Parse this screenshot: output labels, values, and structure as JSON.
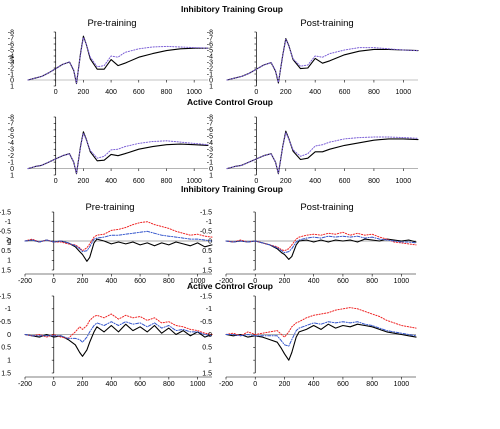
{
  "headings": {
    "top_group_1": "Inhibitory Training Group",
    "top_group_2": "Active Control Group",
    "bottom_group_1": "Inhibitory Training Group",
    "bottom_group_2": "Active Control Group",
    "pre": "Pre-training",
    "post": "Post-training"
  },
  "colors": {
    "black": "#000000",
    "purple": "#7b5fd6",
    "red": "#ee2222",
    "blue": "#3355cc"
  },
  "chart_data": [
    {
      "type": "line",
      "id": "erp-inhib-pre",
      "title": "Pre-training",
      "ylabel": "uV",
      "xlim": [
        -200,
        1100
      ],
      "ylim": [
        1,
        -8
      ],
      "y_inverted": true,
      "xticks": [
        0,
        200,
        400,
        600,
        800,
        1000
      ],
      "yticks": [
        -8,
        -7,
        -6,
        -5,
        -4,
        -3,
        -2,
        -1,
        0,
        1
      ],
      "x": [
        -200,
        -150,
        -100,
        -50,
        0,
        50,
        100,
        130,
        150,
        180,
        200,
        220,
        250,
        300,
        350,
        400,
        450,
        500,
        600,
        700,
        800,
        900,
        1000,
        1100
      ],
      "series": [
        {
          "color": "black",
          "style": "solid",
          "values": [
            0,
            -0.3,
            -0.6,
            -1.2,
            -1.9,
            -2.6,
            -3.0,
            -1.6,
            0.6,
            -4.5,
            -7.3,
            -6.0,
            -3.5,
            -1.8,
            -1.8,
            -3.4,
            -2.4,
            -2.8,
            -3.8,
            -4.4,
            -4.9,
            -5.2,
            -5.3,
            -5.3
          ]
        },
        {
          "color": "purple",
          "style": "dotted",
          "values": [
            0,
            -0.3,
            -0.6,
            -1.2,
            -1.9,
            -2.6,
            -3.0,
            -1.7,
            0.5,
            -4.4,
            -7.1,
            -6.0,
            -3.8,
            -2.2,
            -2.4,
            -4.0,
            -3.8,
            -4.6,
            -5.2,
            -5.5,
            -5.6,
            -5.5,
            -5.4,
            -5.3
          ]
        }
      ]
    },
    {
      "type": "line",
      "id": "erp-inhib-post",
      "title": "Post-training",
      "xlim": [
        -200,
        1100
      ],
      "ylim": [
        1,
        -8
      ],
      "y_inverted": true,
      "xticks": [
        0,
        200,
        400,
        600,
        800,
        1000
      ],
      "yticks": [
        -8,
        -7,
        -6,
        -5,
        -4,
        -3,
        -2,
        -1,
        0,
        1
      ],
      "x": [
        -200,
        -150,
        -100,
        -50,
        0,
        50,
        100,
        130,
        150,
        180,
        200,
        220,
        250,
        300,
        350,
        400,
        450,
        500,
        600,
        700,
        800,
        900,
        1000,
        1100
      ],
      "series": [
        {
          "color": "black",
          "style": "solid",
          "values": [
            0,
            -0.3,
            -0.6,
            -1.1,
            -1.8,
            -2.5,
            -2.9,
            -1.5,
            0.5,
            -4.2,
            -6.9,
            -5.8,
            -3.4,
            -1.9,
            -2.0,
            -3.6,
            -2.8,
            -3.2,
            -4.2,
            -4.8,
            -5.1,
            -5.1,
            -5.0,
            -4.9
          ]
        },
        {
          "color": "purple",
          "style": "dotted",
          "values": [
            0,
            -0.3,
            -0.6,
            -1.1,
            -1.8,
            -2.5,
            -2.9,
            -1.6,
            0.4,
            -4.1,
            -6.8,
            -5.7,
            -3.5,
            -2.3,
            -2.5,
            -4.0,
            -3.8,
            -4.4,
            -5.0,
            -5.4,
            -5.4,
            -5.2,
            -5.0,
            -4.9
          ]
        }
      ]
    },
    {
      "type": "line",
      "id": "erp-active-pre",
      "xlim": [
        -200,
        1100
      ],
      "ylim": [
        1,
        -8
      ],
      "y_inverted": true,
      "xticks": [
        0,
        200,
        400,
        600,
        800,
        1000
      ],
      "yticks": [
        -8,
        -7,
        -6,
        -5,
        -4,
        -3,
        -2,
        -1,
        0,
        1
      ],
      "x": [
        -200,
        -150,
        -100,
        -50,
        0,
        50,
        100,
        130,
        150,
        180,
        200,
        220,
        250,
        300,
        350,
        400,
        450,
        500,
        600,
        700,
        800,
        900,
        1000,
        1100
      ],
      "series": [
        {
          "color": "black",
          "style": "solid",
          "values": [
            0,
            -0.3,
            -0.5,
            -1.0,
            -1.5,
            -2.0,
            -2.3,
            -1.0,
            0.8,
            -3.5,
            -5.7,
            -4.6,
            -2.6,
            -1.2,
            -1.3,
            -2.2,
            -2.0,
            -2.3,
            -3.0,
            -3.4,
            -3.7,
            -3.8,
            -3.7,
            -3.6
          ]
        },
        {
          "color": "purple",
          "style": "dotted",
          "values": [
            0,
            -0.3,
            -0.5,
            -1.0,
            -1.5,
            -2.0,
            -2.3,
            -1.0,
            0.7,
            -3.4,
            -5.5,
            -4.5,
            -2.8,
            -1.6,
            -1.9,
            -2.9,
            -3.0,
            -3.4,
            -3.9,
            -4.2,
            -4.3,
            -4.1,
            -3.9,
            -3.7
          ]
        }
      ]
    },
    {
      "type": "line",
      "id": "erp-active-post",
      "xlim": [
        -200,
        1100
      ],
      "ylim": [
        1,
        -8
      ],
      "y_inverted": true,
      "xticks": [
        0,
        200,
        400,
        600,
        800,
        1000
      ],
      "yticks": [
        -8,
        -7,
        -6,
        -5,
        -4,
        -3,
        -2,
        -1,
        0,
        1
      ],
      "x": [
        -200,
        -150,
        -100,
        -50,
        0,
        50,
        100,
        130,
        150,
        180,
        200,
        220,
        250,
        300,
        350,
        400,
        450,
        500,
        600,
        700,
        800,
        900,
        1000,
        1100
      ],
      "series": [
        {
          "color": "black",
          "style": "solid",
          "values": [
            0,
            -0.3,
            -0.5,
            -1.0,
            -1.5,
            -2.0,
            -2.3,
            -1.0,
            0.8,
            -3.5,
            -5.8,
            -4.7,
            -2.7,
            -1.4,
            -1.6,
            -2.6,
            -2.6,
            -3.0,
            -3.6,
            -4.0,
            -4.4,
            -4.6,
            -4.6,
            -4.5
          ]
        },
        {
          "color": "purple",
          "style": "dotted",
          "values": [
            0,
            -0.3,
            -0.5,
            -1.0,
            -1.5,
            -2.0,
            -2.3,
            -1.0,
            0.7,
            -3.4,
            -5.6,
            -4.6,
            -2.9,
            -1.9,
            -2.3,
            -3.5,
            -3.7,
            -4.1,
            -4.6,
            -4.8,
            -4.9,
            -4.9,
            -4.8,
            -4.7
          ]
        }
      ]
    },
    {
      "type": "line",
      "id": "diff-inhib-pre",
      "title": "Pre-training",
      "ylabel": "uV",
      "xlim": [
        -200,
        1100
      ],
      "ylim": [
        1.5,
        -1.5
      ],
      "y_inverted": true,
      "xticks": [
        -200,
        0,
        200,
        400,
        600,
        800,
        1000
      ],
      "yticks": [
        -1.5,
        -1,
        -0.5,
        0,
        0.5,
        1,
        1.5
      ],
      "x": [
        -200,
        -150,
        -100,
        -50,
        0,
        50,
        100,
        150,
        180,
        200,
        230,
        250,
        280,
        300,
        350,
        400,
        450,
        500,
        550,
        600,
        650,
        700,
        750,
        800,
        850,
        900,
        950,
        1000,
        1050,
        1100
      ],
      "series": [
        {
          "color": "black",
          "style": "solid",
          "values": [
            0.0,
            -0.05,
            0.05,
            -0.05,
            0.05,
            0.0,
            0.1,
            0.3,
            0.55,
            0.7,
            1.05,
            0.85,
            0.1,
            -0.1,
            0.0,
            0.15,
            0.05,
            0.15,
            0.05,
            0.2,
            0.1,
            0.25,
            0.1,
            0.2,
            0.05,
            0.15,
            0.25,
            0.1,
            0.3,
            0.2
          ]
        },
        {
          "color": "red",
          "style": "dotted",
          "values": [
            0.0,
            -0.1,
            0.05,
            -0.05,
            0.05,
            0.05,
            0.15,
            0.2,
            0.35,
            0.5,
            0.35,
            0.15,
            -0.2,
            -0.3,
            -0.35,
            -0.55,
            -0.6,
            -0.7,
            -0.85,
            -0.95,
            -1.0,
            -0.85,
            -0.75,
            -0.65,
            -0.5,
            -0.4,
            -0.3,
            -0.35,
            -0.25,
            -0.2
          ]
        },
        {
          "color": "blue",
          "style": "dashdot",
          "values": [
            0.0,
            -0.05,
            0.05,
            -0.05,
            0.05,
            0.0,
            0.1,
            0.25,
            0.4,
            0.55,
            0.5,
            0.3,
            -0.1,
            -0.15,
            -0.2,
            -0.3,
            -0.3,
            -0.35,
            -0.4,
            -0.45,
            -0.5,
            -0.4,
            -0.3,
            -0.25,
            -0.2,
            -0.15,
            -0.1,
            -0.1,
            -0.05,
            0.0
          ]
        }
      ]
    },
    {
      "type": "line",
      "id": "diff-inhib-post",
      "title": "Post-training",
      "xlim": [
        -200,
        1100
      ],
      "ylim": [
        1.5,
        -1.5
      ],
      "y_inverted": true,
      "xticks": [
        -200,
        0,
        200,
        400,
        600,
        800,
        1000
      ],
      "yticks": [
        -1.5,
        -1,
        -0.5,
        0,
        0.5,
        1,
        1.5
      ],
      "x": [
        -200,
        -150,
        -100,
        -50,
        0,
        50,
        100,
        150,
        180,
        200,
        230,
        250,
        280,
        300,
        350,
        400,
        450,
        500,
        550,
        600,
        650,
        700,
        750,
        800,
        850,
        900,
        950,
        1000,
        1050,
        1100
      ],
      "series": [
        {
          "color": "black",
          "style": "solid",
          "values": [
            0.0,
            0.05,
            0.0,
            0.05,
            0.0,
            0.1,
            0.2,
            0.4,
            0.6,
            0.7,
            0.95,
            0.8,
            0.2,
            0.0,
            -0.05,
            0.05,
            -0.05,
            0.05,
            -0.05,
            0.0,
            -0.05,
            0.05,
            -0.1,
            -0.05,
            0.0,
            -0.1,
            -0.05,
            0.0,
            -0.05,
            0.05
          ]
        },
        {
          "color": "red",
          "style": "dotted",
          "values": [
            0.0,
            0.05,
            -0.05,
            0.05,
            0.0,
            0.1,
            0.2,
            0.3,
            0.45,
            0.5,
            0.4,
            0.2,
            -0.1,
            -0.2,
            -0.3,
            -0.35,
            -0.3,
            -0.4,
            -0.35,
            -0.45,
            -0.3,
            -0.4,
            -0.3,
            -0.35,
            -0.2,
            -0.1,
            0.05,
            0.1,
            0.15,
            0.2
          ]
        },
        {
          "color": "blue",
          "style": "dashdot",
          "values": [
            0.0,
            0.05,
            0.0,
            0.05,
            0.0,
            0.1,
            0.2,
            0.35,
            0.5,
            0.6,
            0.55,
            0.4,
            0.05,
            -0.05,
            -0.15,
            -0.2,
            -0.15,
            -0.25,
            -0.2,
            -0.25,
            -0.2,
            -0.25,
            -0.15,
            -0.2,
            -0.1,
            -0.05,
            0.0,
            0.05,
            0.05,
            0.1
          ]
        }
      ]
    },
    {
      "type": "line",
      "id": "diff-active-pre",
      "xlim": [
        -200,
        1100
      ],
      "ylim": [
        1.5,
        -1.5
      ],
      "y_inverted": true,
      "xticks": [
        -200,
        0,
        200,
        400,
        600,
        800,
        1000
      ],
      "yticks": [
        -1.5,
        -1,
        -0.5,
        0,
        0.5,
        1,
        1.5
      ],
      "x": [
        -200,
        -150,
        -100,
        -50,
        0,
        50,
        100,
        150,
        180,
        200,
        230,
        250,
        280,
        300,
        350,
        400,
        450,
        500,
        550,
        600,
        650,
        700,
        750,
        800,
        850,
        900,
        950,
        1000,
        1050,
        1100
      ],
      "series": [
        {
          "color": "black",
          "style": "solid",
          "values": [
            0.0,
            0.05,
            0.1,
            0.0,
            0.1,
            0.05,
            0.2,
            0.4,
            0.7,
            0.85,
            0.6,
            0.3,
            -0.1,
            -0.3,
            -0.1,
            -0.35,
            -0.1,
            -0.4,
            -0.15,
            -0.3,
            -0.1,
            -0.35,
            -0.05,
            -0.25,
            0.0,
            -0.15,
            0.05,
            -0.1,
            0.1,
            0.0
          ]
        },
        {
          "color": "red",
          "style": "dotted",
          "values": [
            0.0,
            0.05,
            0.0,
            0.1,
            0.0,
            0.1,
            0.15,
            -0.1,
            -0.3,
            -0.2,
            -0.35,
            -0.55,
            -0.7,
            -0.75,
            -0.65,
            -0.8,
            -0.6,
            -0.75,
            -0.65,
            -0.7,
            -0.55,
            -0.65,
            -0.45,
            -0.5,
            -0.35,
            -0.3,
            -0.2,
            -0.15,
            -0.05,
            0.0
          ]
        },
        {
          "color": "blue",
          "style": "dashdot",
          "values": [
            0.0,
            0.05,
            0.05,
            0.05,
            0.05,
            0.05,
            0.15,
            0.15,
            0.2,
            0.3,
            0.1,
            -0.1,
            -0.35,
            -0.45,
            -0.35,
            -0.5,
            -0.35,
            -0.5,
            -0.4,
            -0.45,
            -0.3,
            -0.45,
            -0.25,
            -0.35,
            -0.15,
            -0.2,
            -0.1,
            -0.1,
            0.0,
            0.05
          ]
        }
      ]
    },
    {
      "type": "line",
      "id": "diff-active-post",
      "xlim": [
        -200,
        1100
      ],
      "ylim": [
        1.5,
        -1.5
      ],
      "y_inverted": true,
      "xticks": [
        -200,
        0,
        200,
        400,
        600,
        800,
        1000
      ],
      "yticks": [
        -1.5,
        -1,
        -0.5,
        0,
        0.5,
        1,
        1.5
      ],
      "x": [
        -200,
        -150,
        -100,
        -50,
        0,
        50,
        100,
        150,
        180,
        200,
        230,
        250,
        280,
        300,
        350,
        400,
        450,
        500,
        550,
        600,
        650,
        700,
        750,
        800,
        850,
        900,
        950,
        1000,
        1050,
        1100
      ],
      "series": [
        {
          "color": "black",
          "style": "solid",
          "values": [
            0.0,
            0.05,
            0.0,
            0.1,
            0.05,
            0.1,
            0.2,
            0.3,
            0.55,
            0.75,
            1.0,
            0.7,
            0.1,
            -0.1,
            -0.2,
            -0.35,
            -0.2,
            -0.4,
            -0.25,
            -0.35,
            -0.3,
            -0.4,
            -0.35,
            -0.3,
            -0.2,
            -0.1,
            -0.05,
            0.0,
            0.05,
            0.1
          ]
        },
        {
          "color": "red",
          "style": "dotted",
          "values": [
            0.0,
            -0.05,
            0.05,
            -0.1,
            0.0,
            -0.05,
            -0.1,
            -0.15,
            0.0,
            0.1,
            -0.1,
            -0.3,
            -0.45,
            -0.5,
            -0.65,
            -0.75,
            -0.8,
            -0.85,
            -0.95,
            -1.0,
            -1.05,
            -1.0,
            -0.9,
            -0.8,
            -0.7,
            -0.55,
            -0.45,
            -0.35,
            -0.3,
            -0.25
          ]
        },
        {
          "color": "blue",
          "style": "dashdot",
          "values": [
            0.0,
            0.0,
            0.05,
            0.0,
            0.05,
            0.05,
            0.05,
            0.05,
            0.25,
            0.4,
            0.45,
            0.2,
            -0.15,
            -0.25,
            -0.35,
            -0.45,
            -0.4,
            -0.5,
            -0.45,
            -0.5,
            -0.45,
            -0.5,
            -0.4,
            -0.35,
            -0.25,
            -0.15,
            -0.1,
            -0.05,
            0.0,
            0.05
          ]
        }
      ]
    }
  ]
}
